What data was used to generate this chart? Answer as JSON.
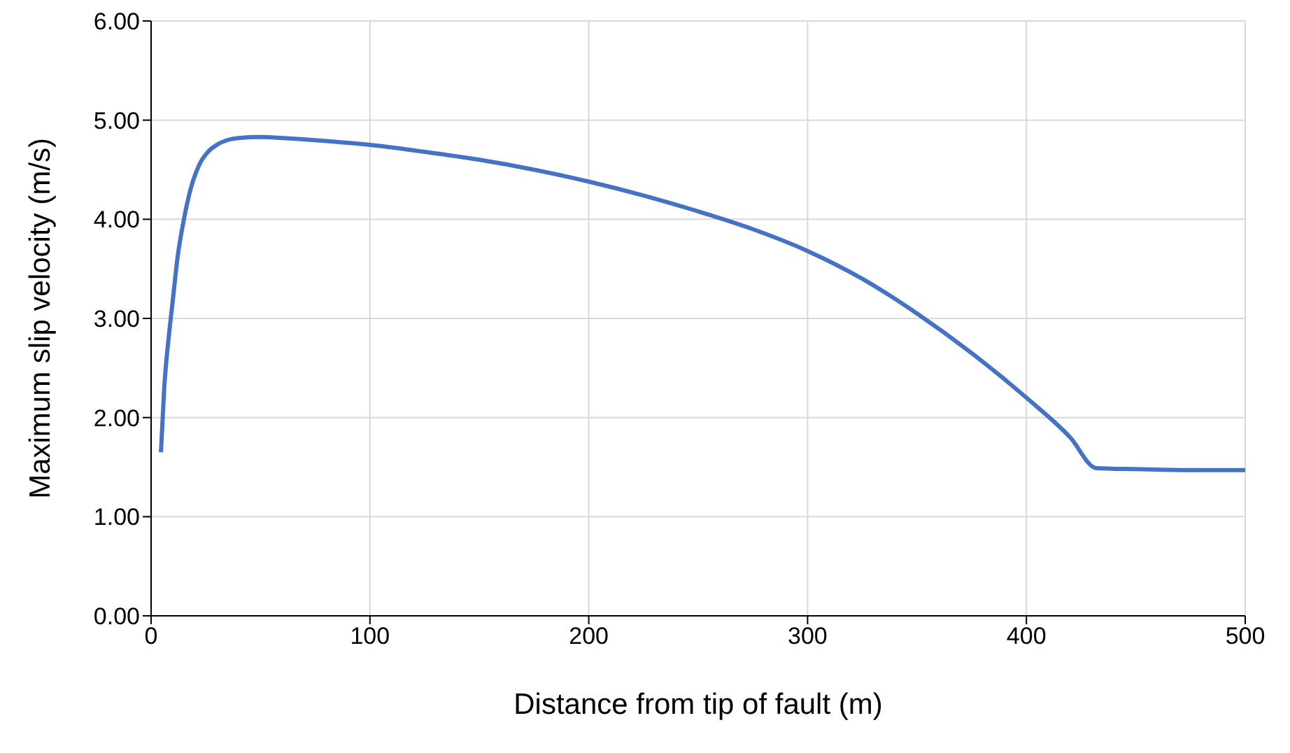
{
  "chart_data": {
    "type": "line",
    "xlabel": "Distance from tip of fault (m)",
    "ylabel": "Maximum slip velocity (m/s)",
    "x": [
      4.5,
      6,
      8,
      10,
      12,
      15,
      18,
      22,
      26,
      30,
      35,
      40,
      50,
      60,
      80,
      100,
      125,
      150,
      175,
      200,
      225,
      250,
      275,
      300,
      325,
      350,
      375,
      400,
      420,
      432,
      450,
      475,
      500
    ],
    "series": [
      {
        "color": "#4472c4",
        "values": [
          1.65,
          2.3,
          2.8,
          3.2,
          3.6,
          4.0,
          4.3,
          4.55,
          4.68,
          4.75,
          4.8,
          4.82,
          4.83,
          4.82,
          4.79,
          4.75,
          4.68,
          4.6,
          4.5,
          4.38,
          4.24,
          4.08,
          3.9,
          3.68,
          3.4,
          3.05,
          2.65,
          2.2,
          1.8,
          1.49,
          1.48,
          1.47,
          1.47
        ]
      }
    ],
    "xlim": [
      0,
      500
    ],
    "xticks": [
      0,
      100,
      200,
      300,
      400,
      500
    ],
    "ylim": [
      0,
      6
    ],
    "yticks": [
      {
        "value": 0,
        "label": "0.00"
      },
      {
        "value": 1,
        "label": "1.00"
      },
      {
        "value": 2,
        "label": "2.00"
      },
      {
        "value": 3,
        "label": "3.00"
      },
      {
        "value": 4,
        "label": "4.00"
      },
      {
        "value": 5,
        "label": "5.00"
      },
      {
        "value": 6,
        "label": "6.00"
      }
    ],
    "grid": true,
    "marker": "none",
    "line_style": "solid"
  }
}
